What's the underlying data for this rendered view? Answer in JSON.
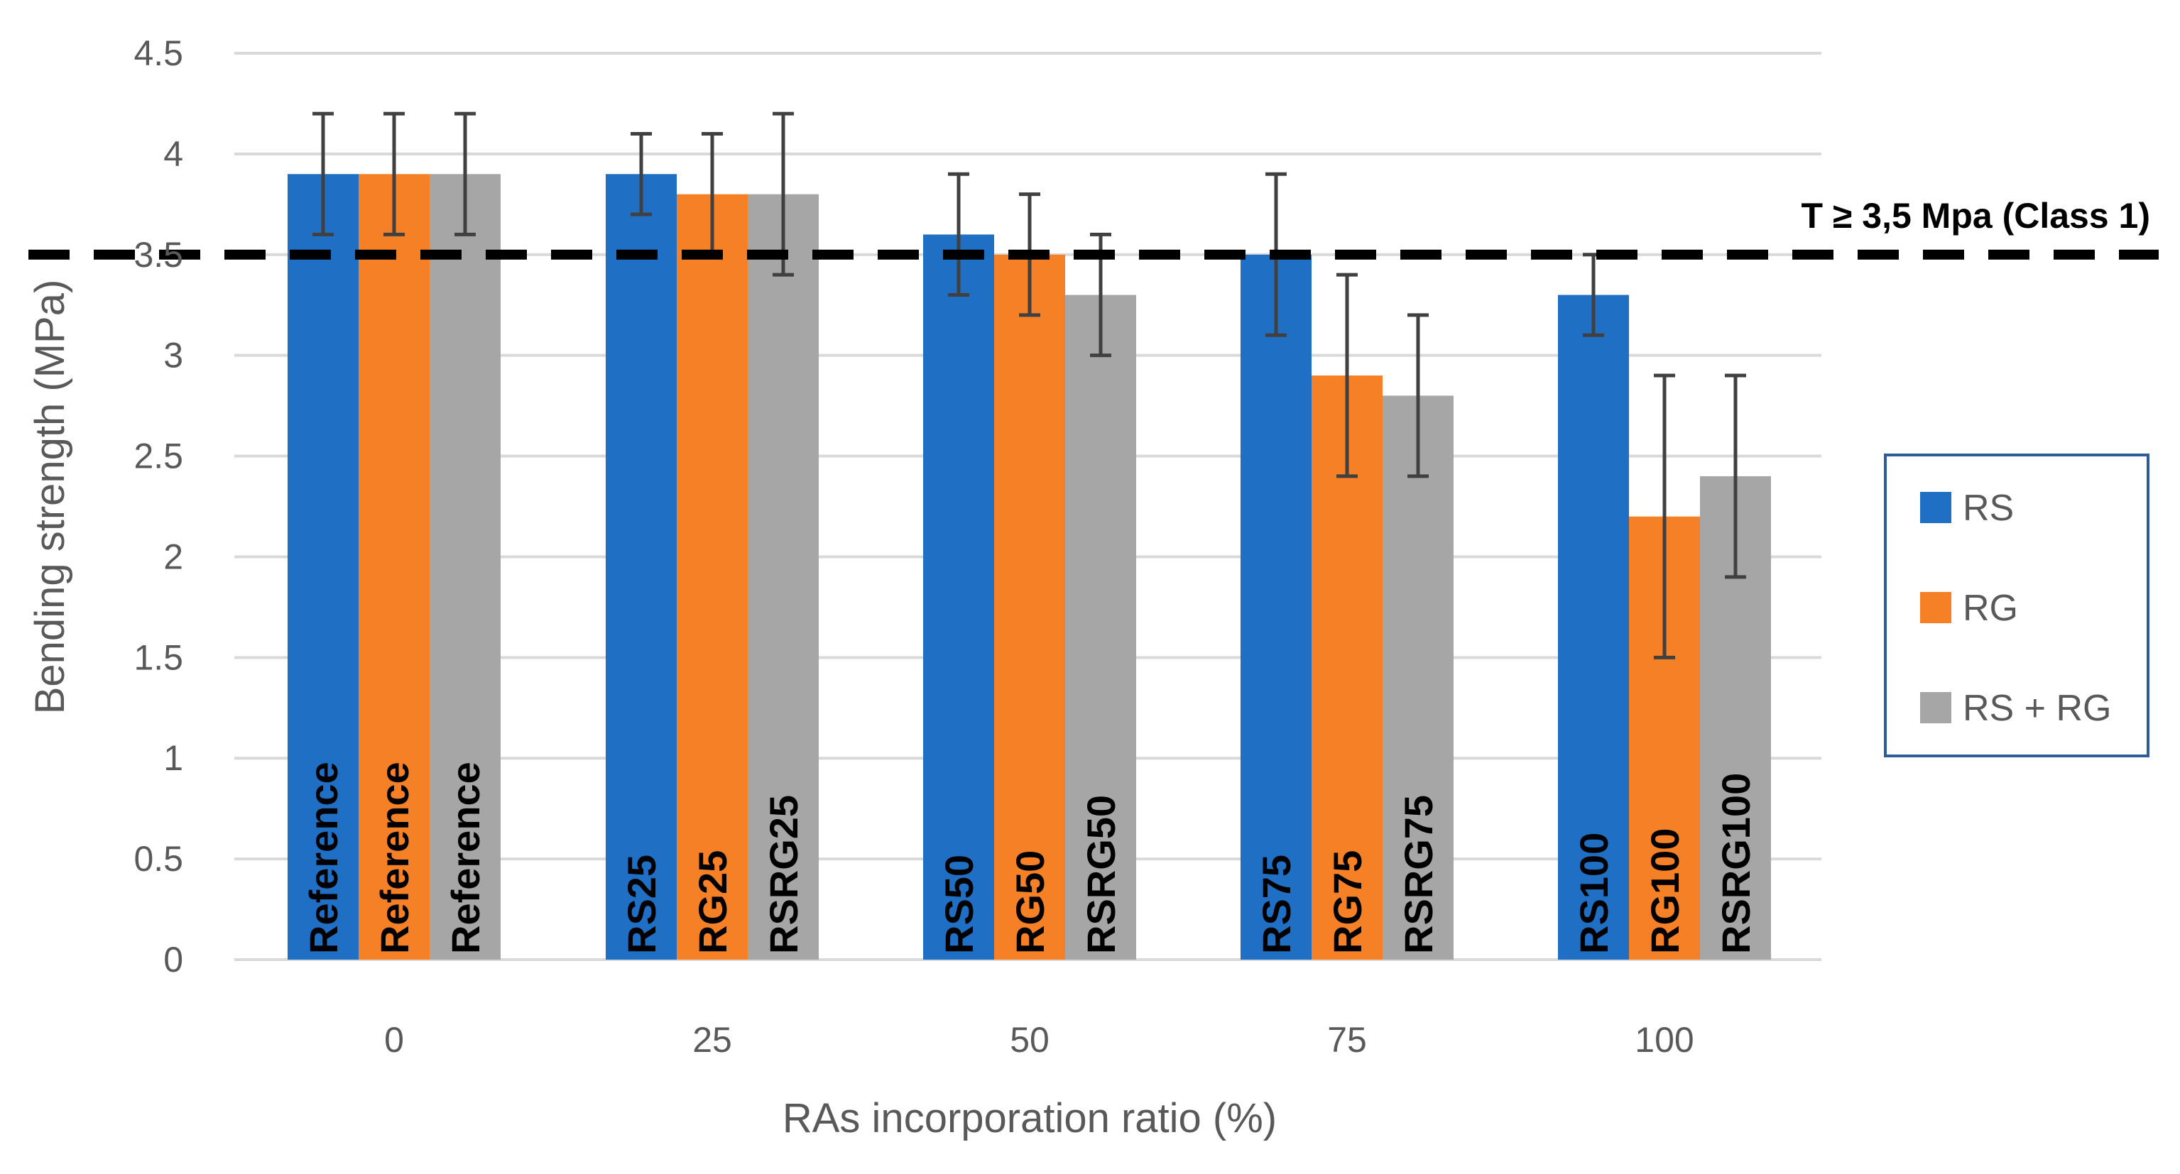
{
  "chart_data": {
    "type": "bar",
    "title": "",
    "xlabel": "RAs incorporation ratio (%)",
    "ylabel": "Bending strength (MPa)",
    "ylim": [
      0,
      4.5
    ],
    "yticks": [
      0,
      0.5,
      1,
      1.5,
      2,
      2.5,
      3,
      3.5,
      4,
      4.5
    ],
    "ytick_labels": [
      "0",
      "0.5",
      "1",
      "1.5",
      "2",
      "2.5",
      "3",
      "3.5",
      "4",
      "4.5"
    ],
    "categories": [
      "0",
      "25",
      "50",
      "75",
      "100"
    ],
    "grid": true,
    "legend_position": "right",
    "series": [
      {
        "name": "RS",
        "color": "#1F6FC5",
        "values": [
          3.9,
          3.9,
          3.6,
          3.5,
          3.3
        ],
        "error_low": [
          3.6,
          3.7,
          3.3,
          3.1,
          3.1
        ],
        "error_high": [
          4.2,
          4.1,
          3.9,
          3.9,
          3.5
        ],
        "bar_labels": [
          "Reference",
          "RS25",
          "RS50",
          "RS75",
          "RS100"
        ]
      },
      {
        "name": "RG",
        "color": "#F58025",
        "values": [
          3.9,
          3.8,
          3.5,
          2.9,
          2.2
        ],
        "error_low": [
          3.6,
          3.5,
          3.2,
          2.4,
          1.5
        ],
        "error_high": [
          4.2,
          4.1,
          3.8,
          3.4,
          2.9
        ],
        "bar_labels": [
          "Reference",
          "RG25",
          "RG50",
          "RG75",
          "RG100"
        ]
      },
      {
        "name": "RS + RG",
        "color": "#A6A6A6",
        "values": [
          3.9,
          3.8,
          3.3,
          2.8,
          2.4
        ],
        "error_low": [
          3.6,
          3.4,
          3.0,
          2.4,
          1.9
        ],
        "error_high": [
          4.2,
          4.2,
          3.6,
          3.2,
          2.9
        ],
        "bar_labels": [
          "Reference",
          "RSRG25",
          "RSRG50",
          "RSRG75",
          "RSRG100"
        ]
      }
    ],
    "threshold": {
      "value": 3.5,
      "label": "T ≥ 3,5 Mpa (Class 1)",
      "style": "dashed"
    },
    "error_bar_color": "#404040",
    "grid_color": "#D9D9D9",
    "legend_border_color": "#2E5C9A"
  }
}
